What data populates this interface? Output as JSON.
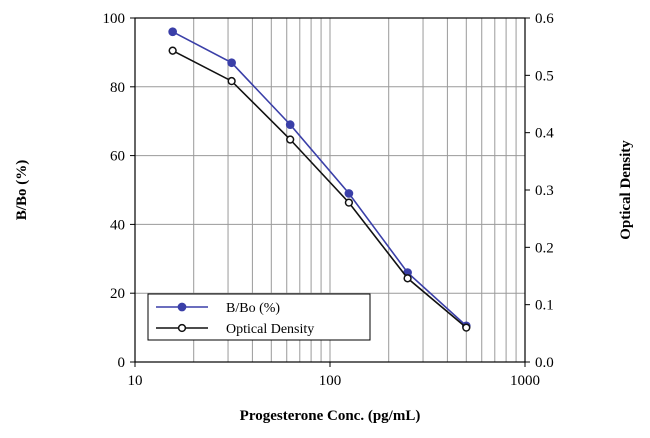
{
  "chart_data": {
    "type": "line",
    "title": "",
    "xlabel": "Progesterone Conc. (pg/mL)",
    "ylabel_left": "B/Bo (%)",
    "ylabel_right": "Optical Density",
    "x_scale": "log",
    "xlim": [
      10,
      1000
    ],
    "ylim_left": [
      0,
      100
    ],
    "ylim_right": [
      0.0,
      0.6
    ],
    "x_ticks": [
      10,
      100,
      1000
    ],
    "x_tick_labels": [
      "10",
      "100",
      "1000"
    ],
    "y_left_ticks": [
      0,
      20,
      40,
      60,
      80,
      100
    ],
    "y_left_tick_labels": [
      "0",
      "20",
      "40",
      "60",
      "80",
      "100"
    ],
    "y_right_ticks": [
      0.0,
      0.1,
      0.2,
      0.3,
      0.4,
      0.5,
      0.6
    ],
    "y_right_tick_labels": [
      "0.0",
      "0.1",
      "0.2",
      "0.3",
      "0.4",
      "0.5",
      "0.6"
    ],
    "grid": "vertical minor log gridlines and horizontal gridlines",
    "legend_position": "bottom-left",
    "series": [
      {
        "name": "B/Bo (%)",
        "axis": "left",
        "color": "#3a3fa8",
        "marker": "filled-circle",
        "x": [
          15.6,
          31.3,
          62.5,
          125,
          250,
          500
        ],
        "y": [
          96,
          87,
          69,
          49,
          26,
          10.5
        ]
      },
      {
        "name": "Optical Density",
        "axis": "right",
        "color": "#111111",
        "marker": "open-circle",
        "x": [
          15.6,
          31.3,
          62.5,
          125,
          250,
          500
        ],
        "y": [
          0.543,
          0.49,
          0.388,
          0.278,
          0.146,
          0.06
        ]
      }
    ]
  }
}
